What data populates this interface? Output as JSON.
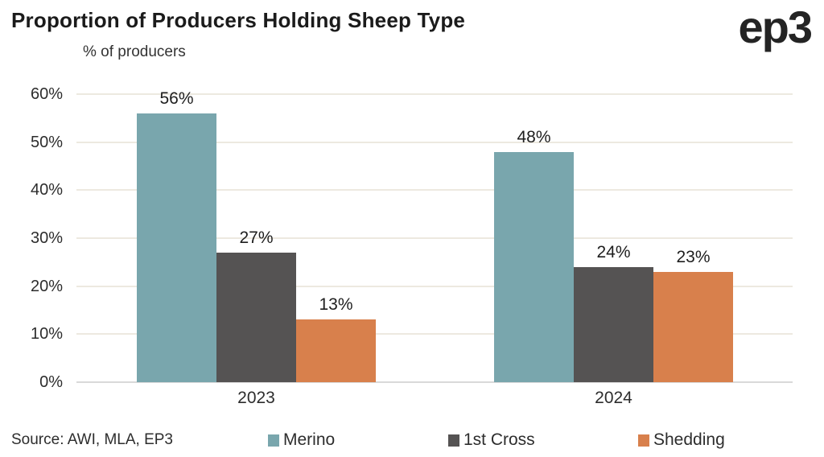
{
  "header": {
    "title": "Proportion of Producers Holding Sheep Type",
    "subtitle": "% of producers",
    "logo": "ep3"
  },
  "footer": {
    "source": "Source: AWI, MLA, EP3"
  },
  "colors": {
    "merino": "#79A6AD",
    "first_cross": "#555353",
    "shedding": "#D8804C",
    "gridline": "#EDE9E0",
    "baseline": "#D9D9D9",
    "text": "#1E1E1E"
  },
  "chart_data": {
    "type": "bar",
    "title": "Proportion of Producers Holding Sheep Type",
    "ylabel": "% of producers",
    "xlabel": "",
    "categories": [
      "2023",
      "2024"
    ],
    "series": [
      {
        "name": "Merino",
        "values": [
          56,
          48
        ],
        "color": "#79A6AD"
      },
      {
        "name": "1st Cross",
        "values": [
          27,
          24
        ],
        "color": "#555353"
      },
      {
        "name": "Shedding",
        "values": [
          13,
          23
        ],
        "color": "#D8804C"
      }
    ],
    "value_labels": [
      [
        "56%",
        "48%"
      ],
      [
        "27%",
        "24%"
      ],
      [
        "13%",
        "23%"
      ]
    ],
    "ylim": [
      0,
      60
    ],
    "yticks": [
      0,
      10,
      20,
      30,
      40,
      50,
      60
    ],
    "ytick_labels": [
      "0%",
      "10%",
      "20%",
      "30%",
      "40%",
      "50%",
      "60%"
    ],
    "grid": true,
    "legend_position": "bottom"
  }
}
